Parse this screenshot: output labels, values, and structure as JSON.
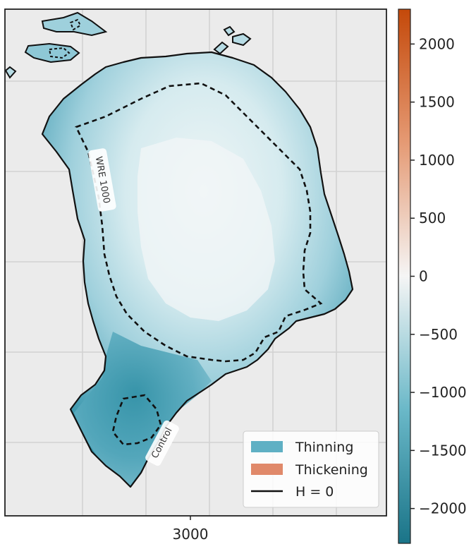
{
  "chart_data": {
    "type": "heatmap",
    "title": "",
    "xlabel": "",
    "ylabel": "",
    "x_ticks": [
      {
        "label": "3000"
      }
    ],
    "colorbar": {
      "vmin": -2300,
      "vmax": 2300,
      "ticks": [
        2000,
        1500,
        1000,
        500,
        0,
        -500,
        -1000,
        -1500,
        -2000
      ],
      "tick_labels": [
        "2000",
        "1500",
        "1000",
        "500",
        "0",
        "−500",
        "−1000",
        "−1500",
        "−2000"
      ],
      "color_low": "#1a7488",
      "color_mid": "#f5f5f5",
      "color_high": "#c4490a"
    },
    "legend": {
      "placement": "lower right",
      "entries": [
        {
          "label": "Thinning",
          "color": "#5fb0c4",
          "kind": "patch"
        },
        {
          "label": "Thickening",
          "color": "#e0896a",
          "kind": "patch"
        },
        {
          "label": "H = 0",
          "color": "#111111",
          "kind": "line"
        }
      ]
    },
    "contour_labels": [
      "WRE 1000",
      "Control"
    ],
    "grid": true,
    "background": "#ebebeb"
  }
}
